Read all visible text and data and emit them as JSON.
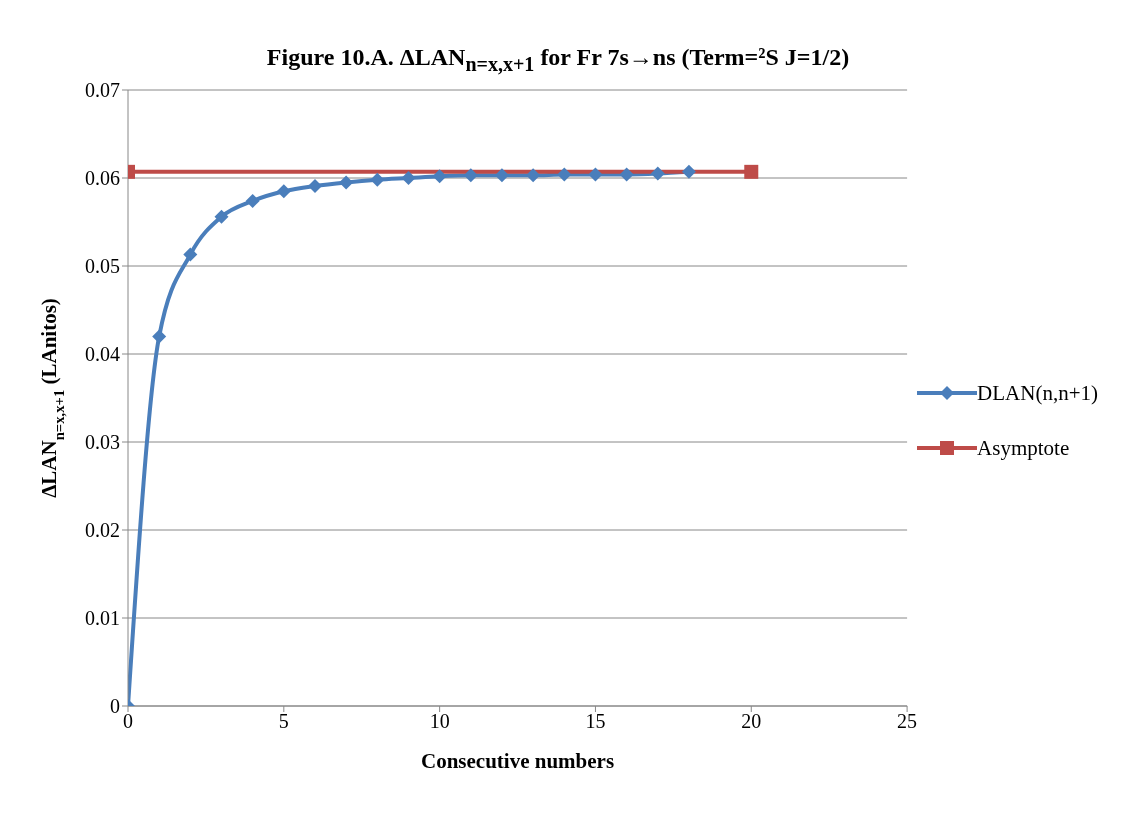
{
  "chart_data": {
    "type": "line",
    "title": "Figure 10.A.  ΔLAN$_{n=x,x+1}$ for Fr 7s→ns (Term=²S J=1/2)",
    "xlabel": "Consecutive numbers",
    "ylabel": "ΔLAN$_{n=x,x+1}$ (LAnitos)",
    "series": [
      {
        "name": "DLAN(n,n+1)",
        "color": "#4a7ebb",
        "marker": "diamond",
        "x": [
          0,
          1,
          2,
          3,
          4,
          5,
          6,
          7,
          8,
          9,
          10,
          11,
          12,
          13,
          14,
          15,
          16,
          17,
          18
        ],
        "values": [
          0,
          0.042,
          0.0513,
          0.0556,
          0.0574,
          0.0585,
          0.0591,
          0.0595,
          0.0598,
          0.06,
          0.0602,
          0.0603,
          0.0603,
          0.0603,
          0.0604,
          0.0604,
          0.0604,
          0.0605,
          0.0607
        ]
      },
      {
        "name": "Asymptote",
        "color": "#be4b48",
        "marker": "square",
        "x": [
          0,
          20
        ],
        "values": [
          0.0607,
          0.0607
        ]
      }
    ],
    "xlim": [
      0,
      25
    ],
    "xticks": [
      0,
      5,
      10,
      15,
      20,
      25
    ],
    "ylim": [
      0,
      0.07
    ],
    "yticks": [
      0,
      0.01,
      0.02,
      0.03,
      0.04,
      0.05,
      0.06,
      0.07
    ],
    "grid": "y",
    "legend": "right"
  }
}
